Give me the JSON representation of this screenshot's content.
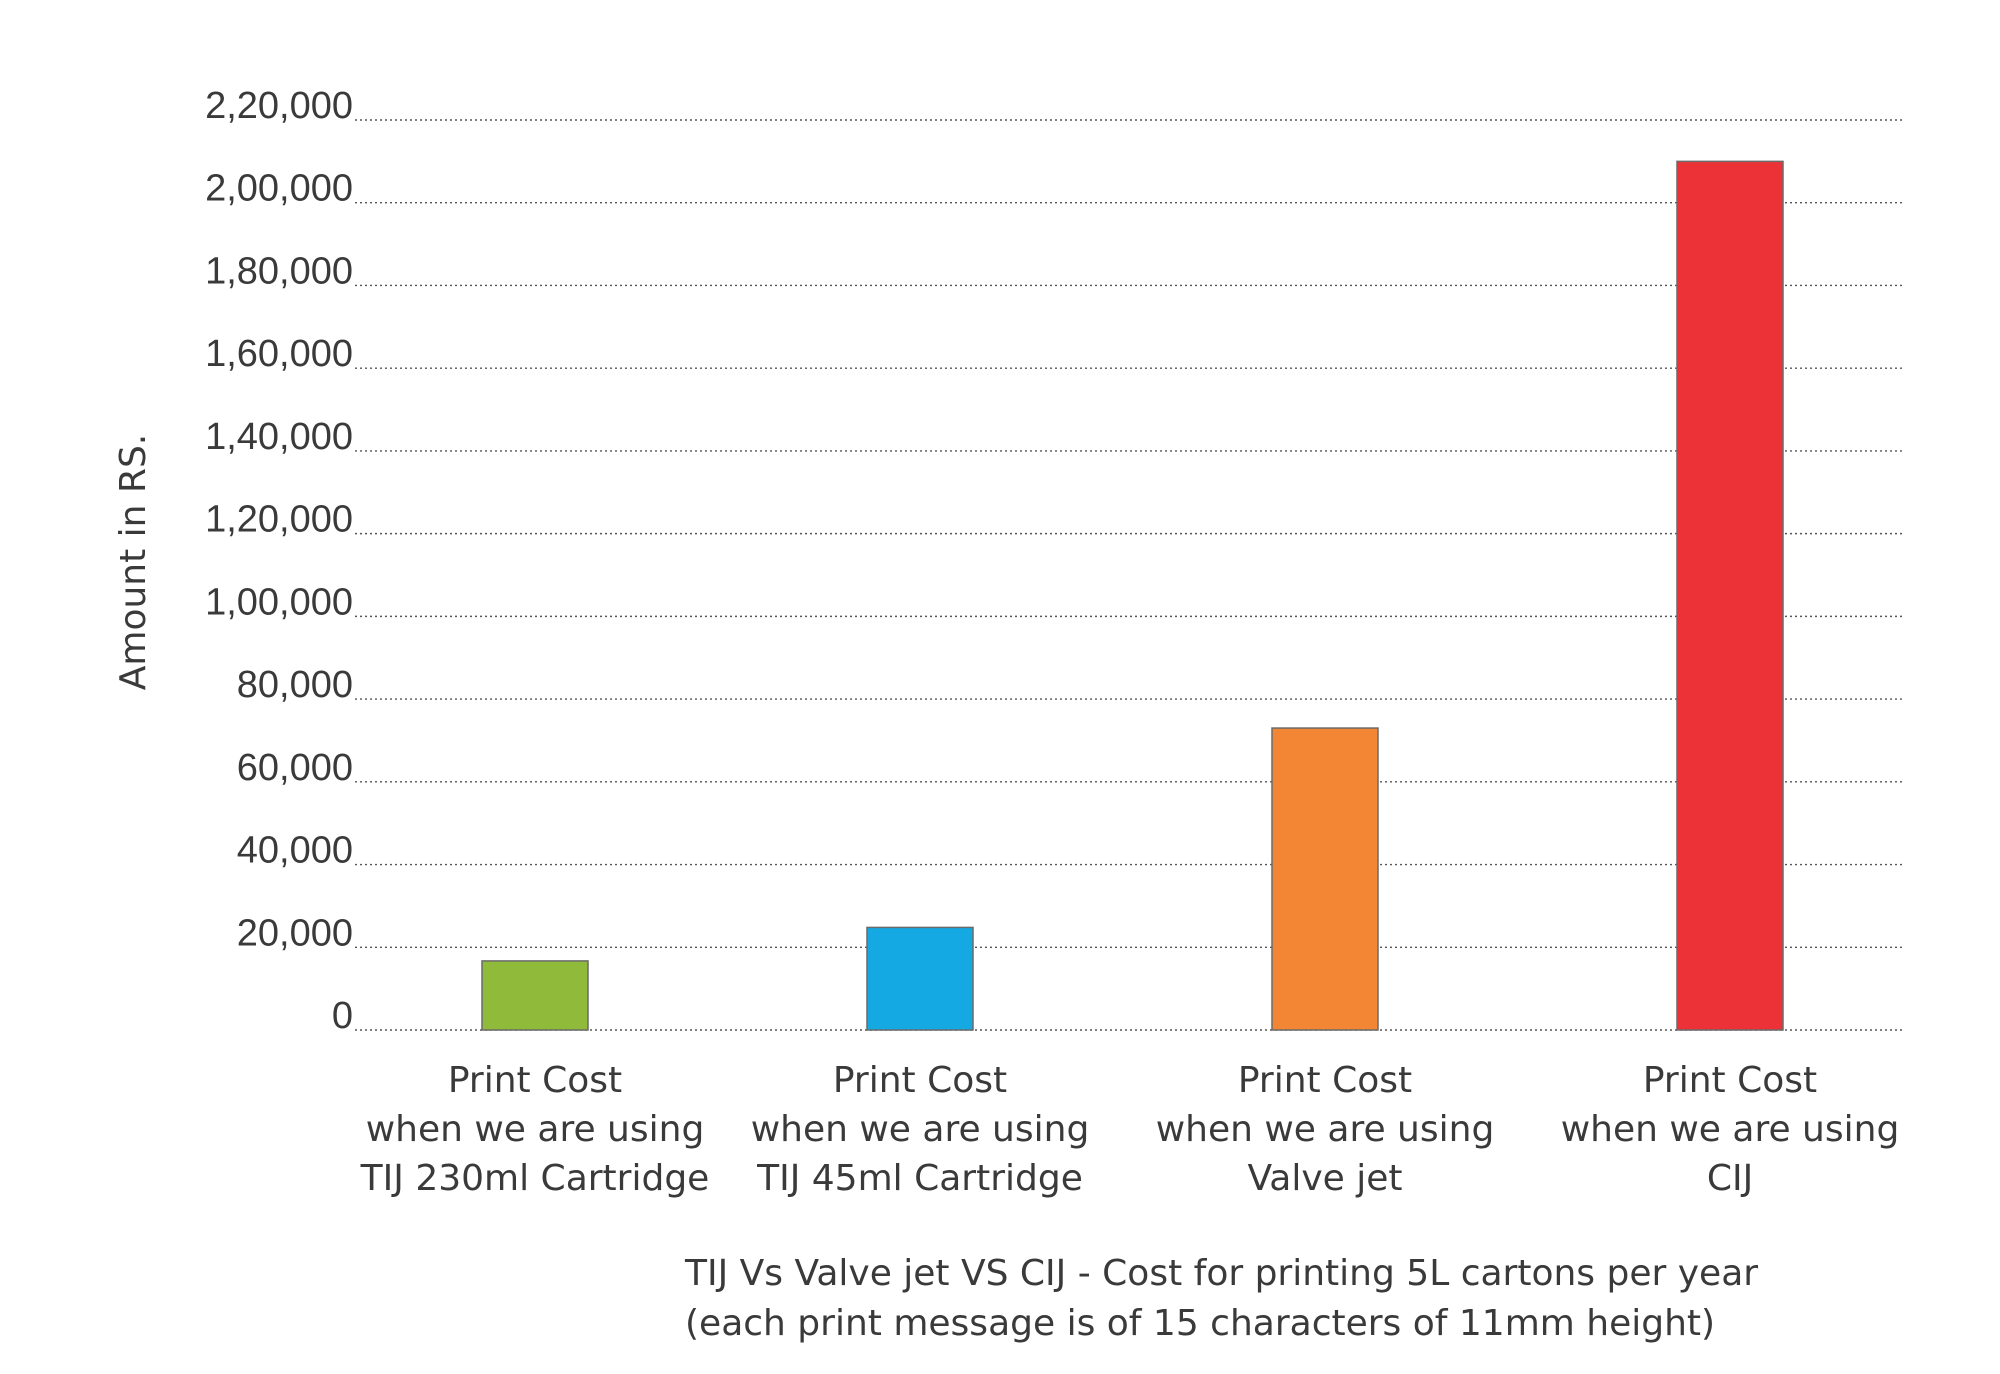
{
  "chart_data": {
    "type": "bar",
    "ylabel": "Amount in RS.",
    "xlabel": [
      "TIJ Vs Valve jet VS CIJ - Cost for printing 5L cartons per year",
      "(each print message is of 15 characters of 11mm height)"
    ],
    "ylim": [
      0,
      220000
    ],
    "yticks": [
      0,
      20000,
      40000,
      60000,
      80000,
      100000,
      120000,
      140000,
      160000,
      180000,
      200000,
      220000
    ],
    "ytick_labels": [
      "0",
      "20,000",
      "40,000",
      "60,000",
      "80,000",
      "1,00,000",
      "1,20,000",
      "1,40,000",
      "1,60,000",
      "1,80,000",
      "2,00,000",
      "2,20,000"
    ],
    "grid": true,
    "categories": [
      [
        "Print Cost",
        "when we are using",
        "TIJ 230ml Cartridge"
      ],
      [
        "Print Cost",
        "when we are using",
        "TIJ 45ml Cartridge"
      ],
      [
        "Print Cost",
        "when we are using",
        "Valve jet"
      ],
      [
        "Print Cost",
        "when we are using",
        "CIJ"
      ]
    ],
    "values": [
      16700,
      24800,
      73000,
      210000
    ],
    "colors": [
      "#8fba3a",
      "#14a9e2",
      "#f28634",
      "#ec3237"
    ]
  }
}
